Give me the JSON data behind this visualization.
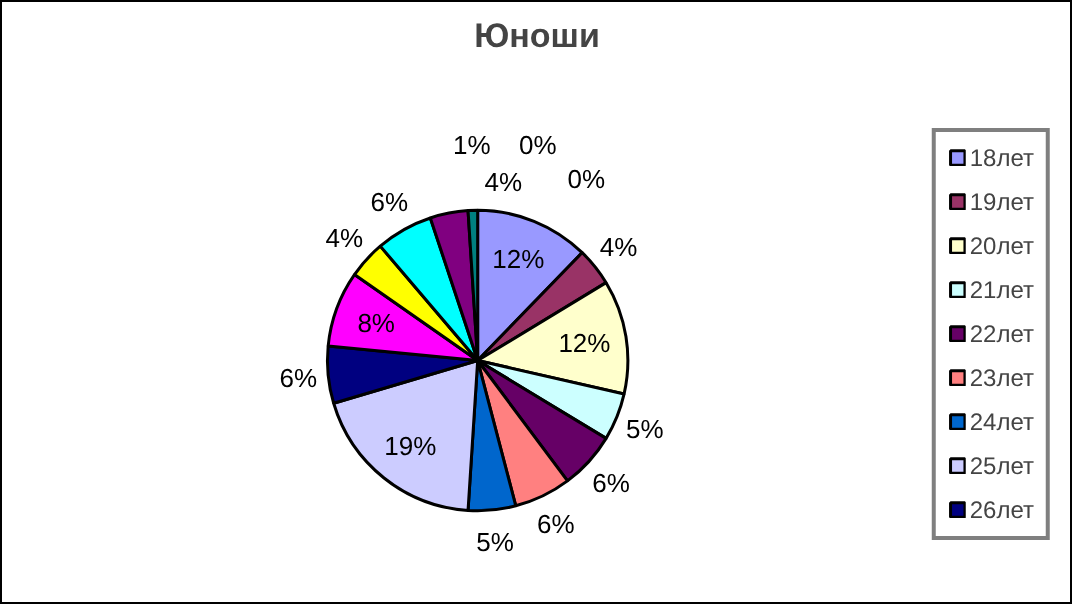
{
  "chart_data": {
    "type": "pie",
    "title": "Юноши",
    "categories": [
      "18лет",
      "19лет",
      "20лет",
      "21лет",
      "22лет",
      "23лет",
      "24лет",
      "25лет",
      "26лет",
      null,
      null,
      null,
      null,
      null,
      null,
      null
    ],
    "values": [
      12,
      4,
      12,
      5,
      6,
      6,
      5,
      19,
      6,
      8,
      4,
      6,
      4,
      0,
      1,
      0
    ],
    "colors": [
      "#9999ff",
      "#993366",
      "#ffffcc",
      "#ccffff",
      "#660066",
      "#ff8080",
      "#0066cc",
      "#ccccff",
      "#000080",
      "#ff00ff",
      "#ffff00",
      "#00ffff",
      "#800080",
      "#800000",
      "#008080",
      "#0000ff"
    ],
    "value_labels": [
      "12%",
      "4%",
      "12%",
      "5%",
      "6%",
      "6%",
      "5%",
      "19%",
      "6%",
      "8%",
      "4%",
      "6%",
      "4%",
      "0%",
      "1%",
      "0%"
    ],
    "legend": "right"
  }
}
